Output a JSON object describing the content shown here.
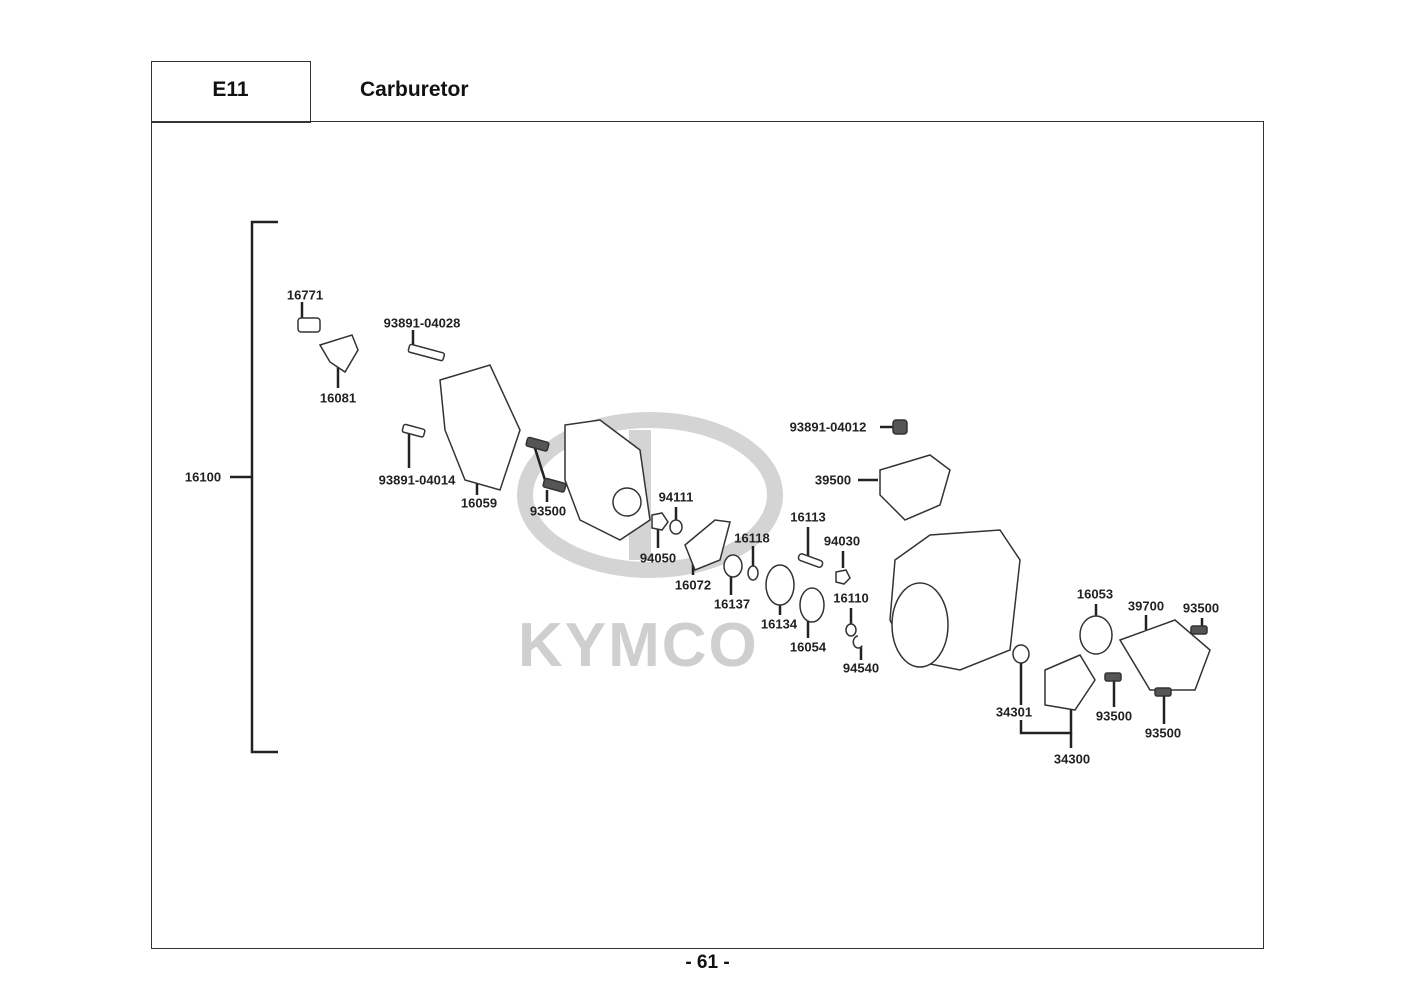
{
  "header": {
    "section_code": "E11",
    "title": "Carburetor"
  },
  "watermark": "KYMCO",
  "footer": {
    "page_number": "- 61 -"
  },
  "parts": {
    "p16100": "16100",
    "p16771": "16771",
    "p16081": "16081",
    "p9389104028": "93891-04028",
    "p9389104014": "93891-04014",
    "p16059": "16059",
    "p93500a": "93500",
    "p94111": "94111",
    "p94050": "94050",
    "p16072": "16072",
    "p16118": "16118",
    "p16137": "16137",
    "p16113": "16113",
    "p94030": "94030",
    "p16134": "16134",
    "p16054": "16054",
    "p16110": "16110",
    "p94540": "94540",
    "p9389104012": "93891-04012",
    "p39500": "39500",
    "p16053": "16053",
    "p39700": "39700",
    "p93500b": "93500",
    "p34301": "34301",
    "p93500c": "93500",
    "p93500d": "93500",
    "p34300": "34300"
  }
}
